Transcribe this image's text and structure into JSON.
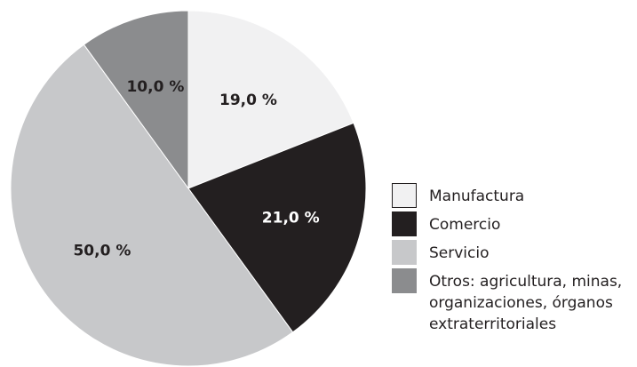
{
  "chart_data": {
    "type": "pie",
    "categories": [
      "Manufactura",
      "Comercio",
      "Servicio",
      "Otros: agricultura, minas, organizaciones, órganos extraterritoriales"
    ],
    "values": [
      19,
      21,
      50,
      10
    ],
    "value_labels": [
      "19,0 %",
      "21,0 %",
      "50,0 %",
      "10,0 %"
    ],
    "colors": [
      "#f1f1f2",
      "#231f20",
      "#c7c8ca",
      "#8b8c8e"
    ],
    "legend": "right"
  }
}
